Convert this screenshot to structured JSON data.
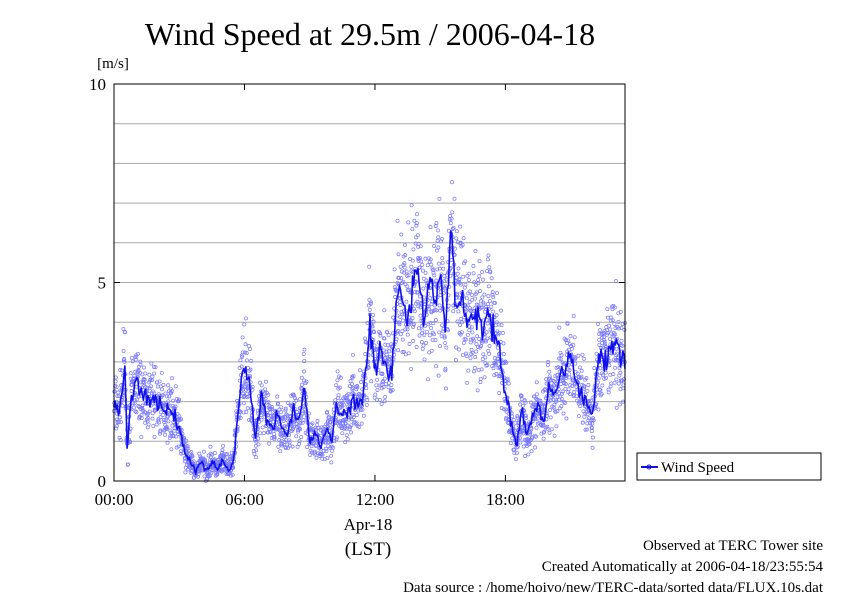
{
  "chart_data": {
    "type": "scatter",
    "title": "Wind Speed at 29.5m / 2006-04-18",
    "ylabel": "[m/s]",
    "ylim": [
      0,
      10
    ],
    "xlim": [
      0,
      23.5
    ],
    "y_ticks": [
      {
        "value": 0,
        "label": "0"
      },
      {
        "value": 5,
        "label": "5"
      },
      {
        "value": 10,
        "label": "10"
      }
    ],
    "y_gridlines": [
      1,
      2,
      3,
      4,
      5,
      6,
      7,
      8,
      9
    ],
    "x_ticks": [
      {
        "value": 0,
        "label": "00:00"
      },
      {
        "value": 6,
        "label": "06:00"
      },
      {
        "value": 12,
        "label": "12:00"
      },
      {
        "value": 18,
        "label": "18:00"
      }
    ],
    "x_sublabel": "Apr-18",
    "x_unit_label": "(LST)",
    "grid": true,
    "legend": {
      "position": "right",
      "entries": [
        "Wind Speed"
      ]
    },
    "series": [
      {
        "name": "Wind Speed",
        "color": "#1010ee",
        "scatter_color": "#7777ff",
        "x": [
          0,
          0.25,
          0.5,
          0.6,
          0.75,
          1,
          1.25,
          1.5,
          1.75,
          2,
          2.25,
          2.5,
          2.75,
          3,
          3.25,
          3.5,
          3.75,
          4,
          4.25,
          4.5,
          4.75,
          5,
          5.25,
          5.5,
          5.75,
          6,
          6.25,
          6.5,
          6.75,
          7,
          7.25,
          7.5,
          7.75,
          8,
          8.25,
          8.5,
          8.75,
          9,
          9.25,
          9.5,
          9.75,
          10,
          10.25,
          10.5,
          10.75,
          11,
          11.25,
          11.5,
          11.75,
          12,
          12.25,
          12.5,
          12.75,
          13,
          13.25,
          13.5,
          13.75,
          14,
          14.25,
          14.5,
          14.75,
          15,
          15.25,
          15.5,
          15.75,
          16,
          16.25,
          16.5,
          16.75,
          17,
          17.25,
          17.5,
          17.75,
          18,
          18.25,
          18.5,
          18.75,
          19,
          19.25,
          19.5,
          19.75,
          20,
          20.25,
          20.5,
          20.75,
          21,
          21.25,
          21.5,
          21.75,
          22,
          22.25,
          22.5,
          22.75,
          23,
          23.25,
          23.5
        ],
        "y": [
          2.0,
          1.7,
          2.9,
          0.8,
          1.9,
          2.5,
          2.2,
          2.0,
          2.1,
          2.0,
          1.8,
          1.8,
          1.7,
          1.4,
          0.7,
          0.5,
          0.2,
          0.5,
          0.3,
          0.5,
          0.3,
          0.5,
          0.3,
          0.5,
          2.0,
          3.0,
          2.4,
          1.0,
          2.1,
          1.6,
          1.3,
          1.7,
          1.3,
          1.2,
          1.8,
          1.4,
          2.4,
          1.0,
          1.2,
          0.9,
          1.3,
          1.0,
          1.9,
          1.6,
          1.7,
          2.1,
          1.9,
          2.3,
          4.0,
          2.8,
          3.3,
          3.0,
          2.6,
          4.6,
          4.6,
          4.3,
          4.8,
          5.5,
          3.9,
          5.0,
          4.4,
          5.5,
          3.8,
          6.3,
          4.4,
          4.6,
          3.9,
          4.2,
          4.3,
          3.8,
          4.3,
          3.7,
          3.2,
          2.3,
          1.5,
          0.9,
          1.8,
          1.2,
          1.5,
          1.8,
          1.5,
          2.4,
          2.1,
          2.7,
          2.6,
          3.2,
          2.6,
          2.3,
          1.9,
          1.5,
          3.0,
          2.9,
          3.2,
          3.5,
          3.2,
          3.0
        ]
      }
    ]
  },
  "footer": {
    "observed": "Observed at TERC Tower site",
    "created": "Created Automatically at 2006-04-18/23:55:54",
    "source": "Data source : /home/hoivo/new/TERC-data/sorted  data/FLUX.10s.dat"
  }
}
